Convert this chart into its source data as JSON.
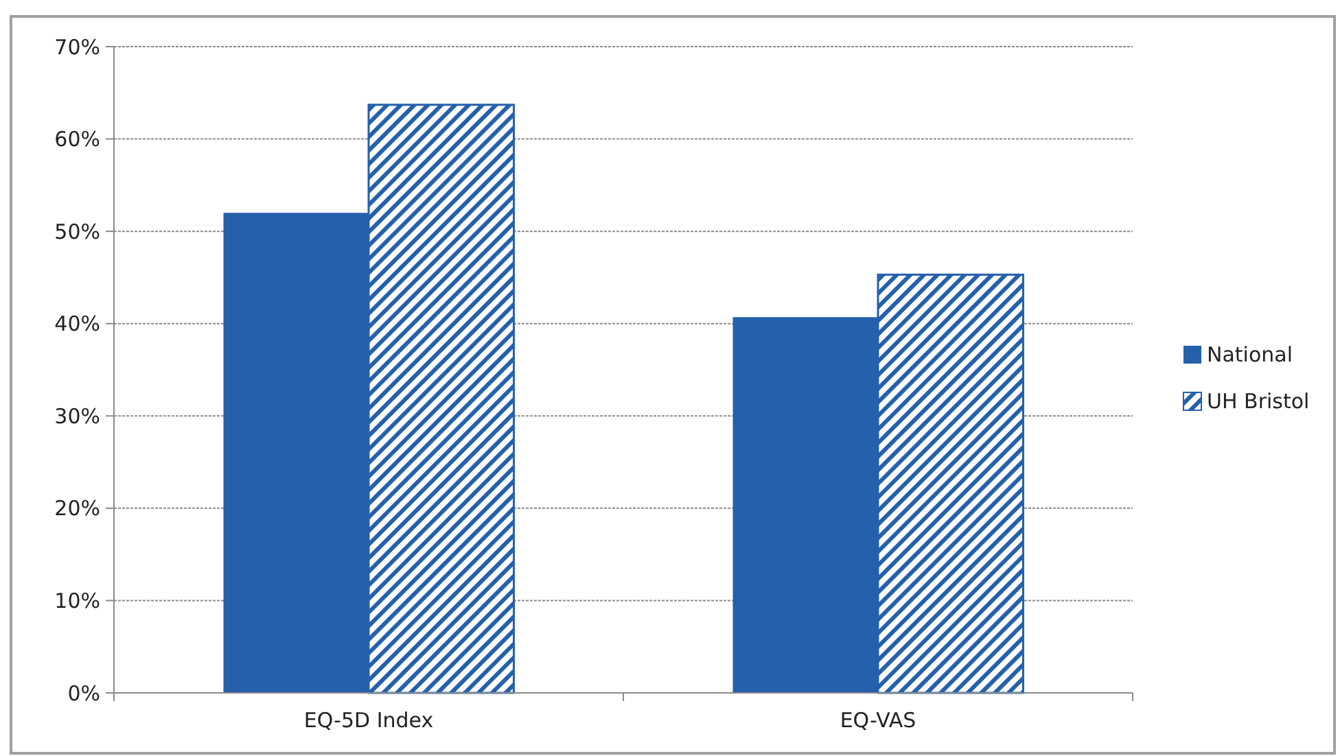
{
  "chart_data": {
    "type": "bar",
    "categories": [
      "EQ-5D Index",
      "EQ-VAS"
    ],
    "series": [
      {
        "name": "National",
        "color": "#2560ac",
        "values": [
          52.0,
          40.7
        ]
      },
      {
        "name": "UH Bristol",
        "color": "#2560ac",
        "values": [
          63.7,
          45.3
        ]
      }
    ],
    "ylim": [
      0,
      70
    ],
    "yticks": [
      {
        "value": 0,
        "label": "0%"
      },
      {
        "value": 10,
        "label": "10%"
      },
      {
        "value": 20,
        "label": "20%"
      },
      {
        "value": 30,
        "label": "30%"
      },
      {
        "value": 40,
        "label": "40%"
      },
      {
        "value": 50,
        "label": "50%"
      },
      {
        "value": 60,
        "label": "60%"
      },
      {
        "value": 70,
        "label": "70%"
      }
    ],
    "grid": "y",
    "legend": "right"
  }
}
